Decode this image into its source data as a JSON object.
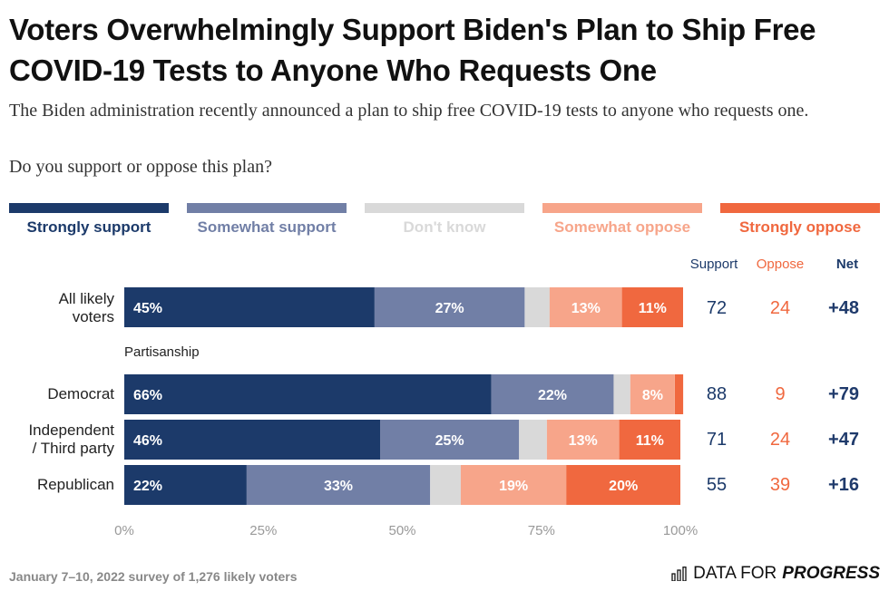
{
  "title": "Voters Overwhelmingly Support Biden's Plan to Ship Free COVID-19 Tests to Anyone Who Requests One",
  "subtitle": "The Biden administration recently announced a plan to ship free COVID-19 tests to anyone who requests one.",
  "question": "Do you support or oppose this plan?",
  "legend": [
    {
      "label": "Strongly support",
      "color": "#1c3a6a",
      "text_color": "#1c3a6a"
    },
    {
      "label": "Somewhat support",
      "color": "#717fa6",
      "text_color": "#717fa6"
    },
    {
      "label": "Don't know",
      "color": "#d9d9d9",
      "text_color": "#d9d9d9"
    },
    {
      "label": "Somewhat oppose",
      "color": "#f7a58a",
      "text_color": "#f7a58a"
    },
    {
      "label": "Strongly oppose",
      "color": "#f0683f",
      "text_color": "#f0683f"
    }
  ],
  "columns": {
    "support": {
      "label": "Support",
      "color": "#1c3a6a"
    },
    "oppose": {
      "label": "Oppose",
      "color": "#f0683f"
    },
    "net": {
      "label": "Net",
      "color": "#1c3a6a"
    }
  },
  "section_label": "Partisanship",
  "footer": "January 7–10, 2022 survey of 1,276 likely voters",
  "brand": {
    "prefix": "DATA FOR",
    "name": "PROGRESS"
  },
  "rows": [
    {
      "label_lines": [
        "All likely",
        "voters"
      ],
      "support": "72",
      "oppose": "24",
      "net": "+48"
    },
    {
      "label_lines": [
        "Democrat"
      ],
      "support": "88",
      "oppose": "9",
      "net": "+79"
    },
    {
      "label_lines": [
        "Independent",
        "/ Third party"
      ],
      "support": "71",
      "oppose": "24",
      "net": "+47"
    },
    {
      "label_lines": [
        "Republican"
      ],
      "support": "55",
      "oppose": "39",
      "net": "+16"
    }
  ],
  "chart_data": {
    "type": "bar",
    "stacked": true,
    "orientation": "horizontal",
    "categories": [
      "All likely voters",
      "Democrat",
      "Independent / Third party",
      "Republican"
    ],
    "series": [
      {
        "name": "Strongly support",
        "values": [
          45,
          66,
          46,
          22
        ],
        "labels": [
          "45%",
          "66%",
          "46%",
          "22%"
        ]
      },
      {
        "name": "Somewhat support",
        "values": [
          27,
          22,
          25,
          33
        ],
        "labels": [
          "27%",
          "22%",
          "25%",
          "33%"
        ]
      },
      {
        "name": "Don't know",
        "values": [
          4.5,
          3,
          5,
          5.5
        ],
        "labels": [
          "",
          "",
          "",
          ""
        ]
      },
      {
        "name": "Somewhat oppose",
        "values": [
          13,
          8,
          13,
          19
        ],
        "labels": [
          "13%",
          "8%",
          "13%",
          "19%"
        ]
      },
      {
        "name": "Strongly oppose",
        "values": [
          11,
          1.5,
          11,
          20.5
        ],
        "labels": [
          "11%",
          "",
          "11%",
          "20%"
        ]
      }
    ],
    "xlim": [
      0,
      100
    ],
    "xticks": [
      "0%",
      "25%",
      "50%",
      "75%",
      "100%"
    ],
    "grid": false
  }
}
